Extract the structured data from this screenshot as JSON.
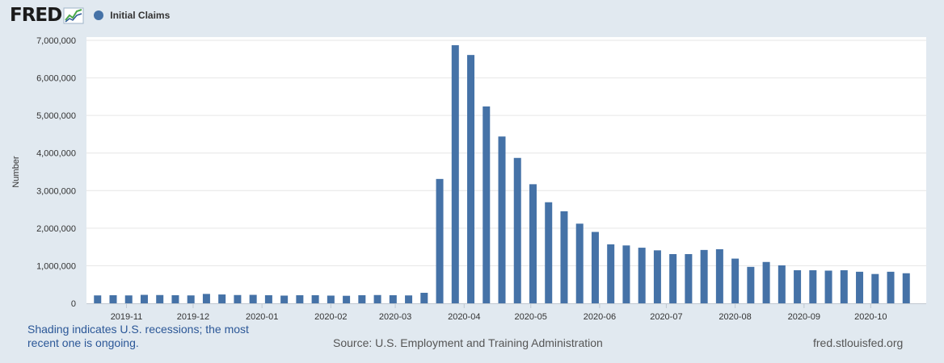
{
  "header": {
    "logo_text": "FRED",
    "legend_label": "Initial Claims"
  },
  "footer": {
    "note_line1": "Shading indicates U.S. recessions; the most",
    "note_line2": "recent one is ongoing.",
    "source": "Source: U.S. Employment and Training Administration",
    "site": "fred.stlouisfed.org"
  },
  "colors": {
    "bar": "#4572a7",
    "background": "#e1e9f0",
    "plot": "#ffffff",
    "grid": "#e6e6e6"
  },
  "chart_data": {
    "type": "bar",
    "title": "",
    "xlabel": "",
    "ylabel": "Number",
    "ylim": [
      0,
      7000000
    ],
    "y_ticks": [
      "0",
      "1,000,000",
      "2,000,000",
      "3,000,000",
      "4,000,000",
      "5,000,000",
      "6,000,000",
      "7,000,000"
    ],
    "x_ticks": [
      {
        "label": "2019-11",
        "date": "2019-11-01"
      },
      {
        "label": "2019-12",
        "date": "2019-12-01"
      },
      {
        "label": "2020-01",
        "date": "2020-01-01"
      },
      {
        "label": "2020-02",
        "date": "2020-02-01"
      },
      {
        "label": "2020-03",
        "date": "2020-03-01"
      },
      {
        "label": "2020-04",
        "date": "2020-04-01"
      },
      {
        "label": "2020-05",
        "date": "2020-05-01"
      },
      {
        "label": "2020-06",
        "date": "2020-06-01"
      },
      {
        "label": "2020-07",
        "date": "2020-07-01"
      },
      {
        "label": "2020-08",
        "date": "2020-08-01"
      },
      {
        "label": "2020-09",
        "date": "2020-09-01"
      },
      {
        "label": "2020-10",
        "date": "2020-10-01"
      }
    ],
    "x_range": [
      "2019-10-14",
      "2020-10-26"
    ],
    "grid": true,
    "legend_position": "top-left",
    "series": [
      {
        "name": "Initial Claims",
        "points": [
          {
            "x": "2019-10-19",
            "y": 210000
          },
          {
            "x": "2019-10-26",
            "y": 215000
          },
          {
            "x": "2019-11-02",
            "y": 210000
          },
          {
            "x": "2019-11-09",
            "y": 225000
          },
          {
            "x": "2019-11-16",
            "y": 220000
          },
          {
            "x": "2019-11-23",
            "y": 215000
          },
          {
            "x": "2019-11-30",
            "y": 210000
          },
          {
            "x": "2019-12-07",
            "y": 250000
          },
          {
            "x": "2019-12-14",
            "y": 235000
          },
          {
            "x": "2019-12-21",
            "y": 220000
          },
          {
            "x": "2019-12-28",
            "y": 225000
          },
          {
            "x": "2020-01-04",
            "y": 215000
          },
          {
            "x": "2020-01-11",
            "y": 205000
          },
          {
            "x": "2020-01-18",
            "y": 215000
          },
          {
            "x": "2020-01-25",
            "y": 215000
          },
          {
            "x": "2020-02-01",
            "y": 205000
          },
          {
            "x": "2020-02-08",
            "y": 200000
          },
          {
            "x": "2020-02-15",
            "y": 215000
          },
          {
            "x": "2020-02-22",
            "y": 220000
          },
          {
            "x": "2020-02-29",
            "y": 215000
          },
          {
            "x": "2020-03-07",
            "y": 210000
          },
          {
            "x": "2020-03-14",
            "y": 280000
          },
          {
            "x": "2020-03-21",
            "y": 3310000
          },
          {
            "x": "2020-03-28",
            "y": 6870000
          },
          {
            "x": "2020-04-04",
            "y": 6610000
          },
          {
            "x": "2020-04-11",
            "y": 5240000
          },
          {
            "x": "2020-04-18",
            "y": 4440000
          },
          {
            "x": "2020-04-25",
            "y": 3870000
          },
          {
            "x": "2020-05-02",
            "y": 3170000
          },
          {
            "x": "2020-05-09",
            "y": 2690000
          },
          {
            "x": "2020-05-16",
            "y": 2450000
          },
          {
            "x": "2020-05-23",
            "y": 2120000
          },
          {
            "x": "2020-05-30",
            "y": 1900000
          },
          {
            "x": "2020-06-06",
            "y": 1570000
          },
          {
            "x": "2020-06-13",
            "y": 1540000
          },
          {
            "x": "2020-06-20",
            "y": 1480000
          },
          {
            "x": "2020-06-27",
            "y": 1410000
          },
          {
            "x": "2020-07-04",
            "y": 1310000
          },
          {
            "x": "2020-07-11",
            "y": 1310000
          },
          {
            "x": "2020-07-18",
            "y": 1420000
          },
          {
            "x": "2020-07-25",
            "y": 1440000
          },
          {
            "x": "2020-08-01",
            "y": 1190000
          },
          {
            "x": "2020-08-08",
            "y": 970000
          },
          {
            "x": "2020-08-15",
            "y": 1100000
          },
          {
            "x": "2020-08-22",
            "y": 1010000
          },
          {
            "x": "2020-08-29",
            "y": 880000
          },
          {
            "x": "2020-09-05",
            "y": 880000
          },
          {
            "x": "2020-09-12",
            "y": 870000
          },
          {
            "x": "2020-09-19",
            "y": 880000
          },
          {
            "x": "2020-09-26",
            "y": 840000
          },
          {
            "x": "2020-10-03",
            "y": 780000
          },
          {
            "x": "2020-10-10",
            "y": 840000
          },
          {
            "x": "2020-10-17",
            "y": 800000
          }
        ]
      }
    ]
  }
}
